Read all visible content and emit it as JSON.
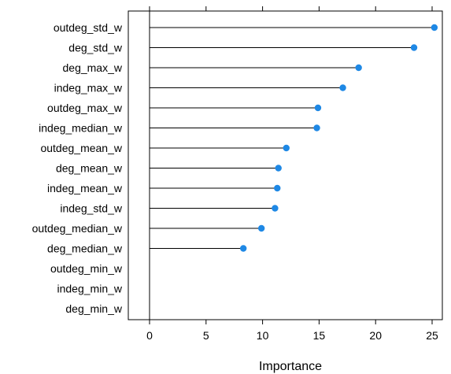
{
  "chart_data": {
    "type": "lollipop",
    "xlabel": "Importance",
    "xlim": [
      -2,
      27
    ],
    "xticks": [
      0,
      5,
      10,
      15,
      20,
      25
    ],
    "grid": false,
    "legend": "none",
    "colors": {
      "point": "#1E88E5",
      "segment": "#000000",
      "frame": "#000000"
    },
    "categories": [
      "outdeg_std_w",
      "deg_std_w",
      "deg_max_w",
      "indeg_max_w",
      "outdeg_max_w",
      "indeg_median_w",
      "outdeg_mean_w",
      "deg_mean_w",
      "indeg_mean_w",
      "indeg_std_w",
      "outdeg_median_w",
      "deg_median_w",
      "outdeg_min_w",
      "indeg_min_w",
      "deg_min_w"
    ],
    "values": [
      25.2,
      23.4,
      18.5,
      17.1,
      14.9,
      14.8,
      12.1,
      11.4,
      11.3,
      11.1,
      9.9,
      8.3,
      0,
      0,
      0
    ],
    "show_point": [
      true,
      true,
      true,
      true,
      true,
      true,
      true,
      true,
      true,
      true,
      true,
      true,
      false,
      false,
      false
    ]
  }
}
